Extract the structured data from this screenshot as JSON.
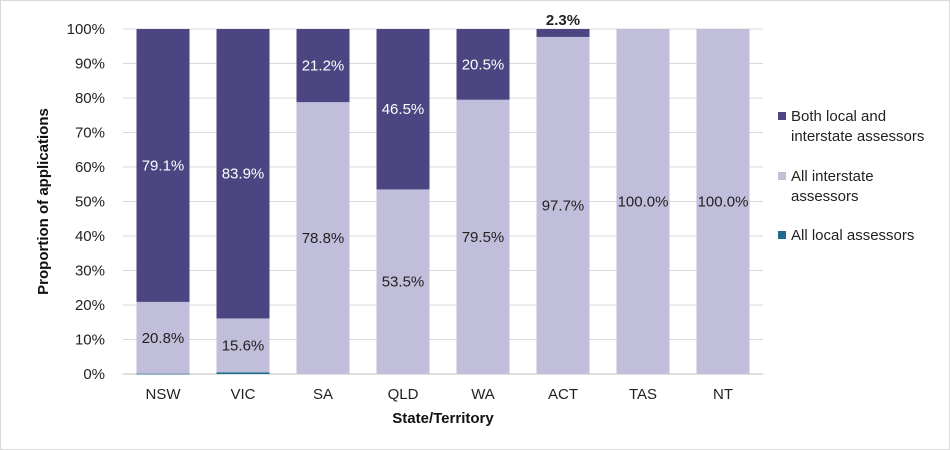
{
  "chart_data": {
    "type": "bar",
    "stacked": true,
    "percent_stacked": true,
    "categories": [
      "NSW",
      "VIC",
      "SA",
      "QLD",
      "WA",
      "ACT",
      "TAS",
      "NT"
    ],
    "series": [
      {
        "name": "All local assessors",
        "color": "#1f6b8a",
        "values": [
          0.1,
          0.5,
          0,
          0,
          0,
          0,
          0,
          0
        ],
        "labels": [
          "",
          "",
          "",
          "",
          "",
          "",
          "",
          ""
        ]
      },
      {
        "name": "All interstate assessors",
        "color": "#c0bedb",
        "values": [
          20.8,
          15.6,
          78.8,
          53.5,
          79.5,
          97.7,
          100.0,
          100.0
        ],
        "labels": [
          "20.8%",
          "15.6%",
          "78.8%",
          "53.5%",
          "79.5%",
          "97.7%",
          "100.0%",
          "100.0%"
        ]
      },
      {
        "name": "Both local and interstate assessors",
        "color": "#4b4681",
        "values": [
          79.1,
          83.9,
          21.2,
          46.5,
          20.5,
          2.3,
          0,
          0
        ],
        "labels": [
          "79.1%",
          "83.9%",
          "21.2%",
          "46.5%",
          "20.5%",
          "2.3%",
          "",
          ""
        ]
      }
    ],
    "xlabel": "State/Territory",
    "ylabel": "Proportion of applications",
    "ylim": [
      0,
      100
    ],
    "yticks": [
      "0%",
      "10%",
      "20%",
      "30%",
      "40%",
      "50%",
      "60%",
      "70%",
      "80%",
      "90%",
      "100%"
    ],
    "grid": true,
    "legend": {
      "position": "right",
      "entries": [
        {
          "lines": [
            "Both local and",
            "interstate assessors"
          ],
          "color": "#4b4681"
        },
        {
          "lines": [
            "All interstate",
            "assessors"
          ],
          "color": "#c0bedb"
        },
        {
          "lines": [
            "All local assessors"
          ],
          "color": "#1f6b8a"
        }
      ]
    }
  }
}
